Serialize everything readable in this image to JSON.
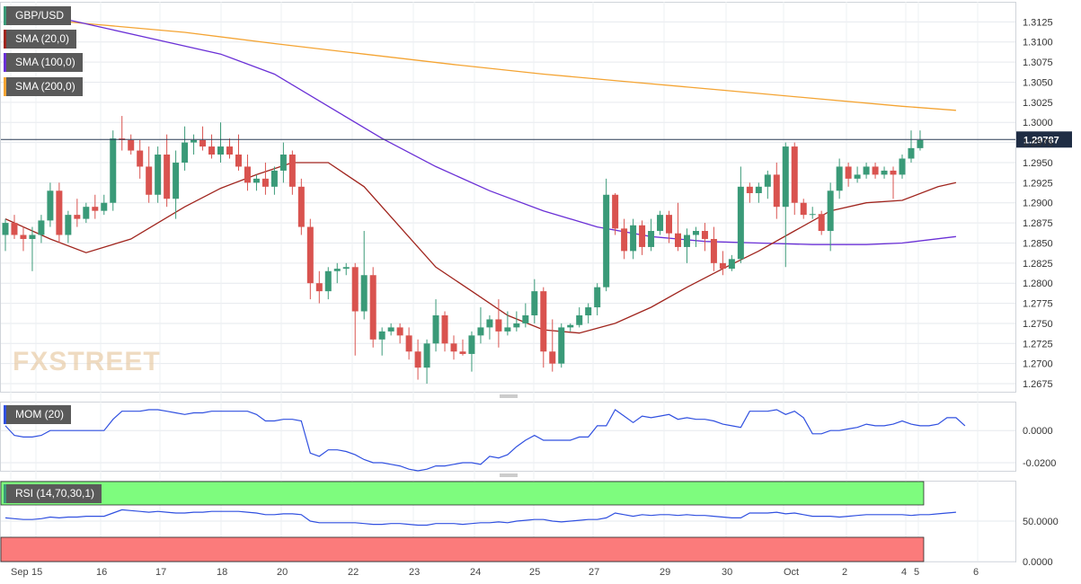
{
  "colors": {
    "up": "#3a9a78",
    "down": "#d9534f",
    "sma20": "#a0251e",
    "sma100": "#6a30d6",
    "sma200": "#f4a433",
    "mom": "#3050e0",
    "rsi": "#3050e0",
    "rsi_over": "#7efc7e",
    "rsi_under": "#fb7b7b"
  },
  "watermark": "FXSTREET",
  "indicators": {
    "pair": "GBP/USD",
    "sma20": "SMA (20,0)",
    "sma100": "SMA (100,0)",
    "sma200": "SMA (200,0)",
    "mom": "MOM (20)",
    "rsi": "RSI (14,70,30,1)"
  },
  "chart_data": [
    {
      "type": "candlestick",
      "title": "GBP/USD",
      "last_price": "1.29787",
      "last_value": 1.29787,
      "ylim": [
        1.2665,
        1.315
      ],
      "y_ticks": [
        "1.3125",
        "1.3100",
        "1.3075",
        "1.3050",
        "1.3025",
        "1.3000",
        "1.2975",
        "1.2950",
        "1.2925",
        "1.2900",
        "1.2875",
        "1.2850",
        "1.2825",
        "1.2800",
        "1.2775",
        "1.2750",
        "1.2725",
        "1.2700",
        "1.2675"
      ],
      "x_labels": [
        "Sep",
        "15",
        "16",
        "17",
        "18",
        "20",
        "22",
        "23",
        "24",
        "25",
        "27",
        "29",
        "30",
        "Oct",
        "2",
        "4",
        "5",
        "6"
      ],
      "candles": [
        {
          "o": 1.286,
          "h": 1.288,
          "l": 1.284,
          "c": 1.2875
        },
        {
          "o": 1.2875,
          "h": 1.2885,
          "l": 1.2855,
          "c": 1.286
        },
        {
          "o": 1.286,
          "h": 1.287,
          "l": 1.284,
          "c": 1.2855
        },
        {
          "o": 1.2855,
          "h": 1.287,
          "l": 1.2815,
          "c": 1.286
        },
        {
          "o": 1.286,
          "h": 1.2885,
          "l": 1.285,
          "c": 1.2878
        },
        {
          "o": 1.2878,
          "h": 1.2925,
          "l": 1.287,
          "c": 1.2915
        },
        {
          "o": 1.2915,
          "h": 1.2925,
          "l": 1.285,
          "c": 1.286
        },
        {
          "o": 1.286,
          "h": 1.289,
          "l": 1.285,
          "c": 1.2885
        },
        {
          "o": 1.2885,
          "h": 1.2905,
          "l": 1.287,
          "c": 1.288
        },
        {
          "o": 1.288,
          "h": 1.29,
          "l": 1.2875,
          "c": 1.2895
        },
        {
          "o": 1.2895,
          "h": 1.291,
          "l": 1.288,
          "c": 1.289
        },
        {
          "o": 1.289,
          "h": 1.291,
          "l": 1.2885,
          "c": 1.29
        },
        {
          "o": 1.29,
          "h": 1.299,
          "l": 1.289,
          "c": 1.298
        },
        {
          "o": 1.298,
          "h": 1.3008,
          "l": 1.2965,
          "c": 1.2978
        },
        {
          "o": 1.2978,
          "h": 1.2985,
          "l": 1.296,
          "c": 1.2965
        },
        {
          "o": 1.2965,
          "h": 1.2978,
          "l": 1.293,
          "c": 1.2945
        },
        {
          "o": 1.2945,
          "h": 1.297,
          "l": 1.29,
          "c": 1.291
        },
        {
          "o": 1.291,
          "h": 1.297,
          "l": 1.29,
          "c": 1.296
        },
        {
          "o": 1.296,
          "h": 1.2985,
          "l": 1.2895,
          "c": 1.2905
        },
        {
          "o": 1.2905,
          "h": 1.2965,
          "l": 1.288,
          "c": 1.295
        },
        {
          "o": 1.295,
          "h": 1.2995,
          "l": 1.294,
          "c": 1.2975
        },
        {
          "o": 1.2975,
          "h": 1.2985,
          "l": 1.296,
          "c": 1.2978
        },
        {
          "o": 1.2978,
          "h": 1.2995,
          "l": 1.2965,
          "c": 1.297
        },
        {
          "o": 1.297,
          "h": 1.2985,
          "l": 1.2955,
          "c": 1.296
        },
        {
          "o": 1.296,
          "h": 1.3,
          "l": 1.295,
          "c": 1.297
        },
        {
          "o": 1.297,
          "h": 1.298,
          "l": 1.2955,
          "c": 1.296
        },
        {
          "o": 1.296,
          "h": 1.2985,
          "l": 1.294,
          "c": 1.2945
        },
        {
          "o": 1.2945,
          "h": 1.296,
          "l": 1.2915,
          "c": 1.2925
        },
        {
          "o": 1.2925,
          "h": 1.2935,
          "l": 1.2915,
          "c": 1.293
        },
        {
          "o": 1.293,
          "h": 1.295,
          "l": 1.291,
          "c": 1.292
        },
        {
          "o": 1.292,
          "h": 1.2945,
          "l": 1.291,
          "c": 1.294
        },
        {
          "o": 1.294,
          "h": 1.2975,
          "l": 1.2925,
          "c": 1.296
        },
        {
          "o": 1.296,
          "h": 1.2965,
          "l": 1.291,
          "c": 1.292
        },
        {
          "o": 1.292,
          "h": 1.293,
          "l": 1.286,
          "c": 1.287
        },
        {
          "o": 1.287,
          "h": 1.288,
          "l": 1.278,
          "c": 1.28
        },
        {
          "o": 1.28,
          "h": 1.2815,
          "l": 1.2775,
          "c": 1.279
        },
        {
          "o": 1.279,
          "h": 1.282,
          "l": 1.278,
          "c": 1.2815
        },
        {
          "o": 1.2815,
          "h": 1.2825,
          "l": 1.28,
          "c": 1.2818
        },
        {
          "o": 1.2818,
          "h": 1.2825,
          "l": 1.281,
          "c": 1.282
        },
        {
          "o": 1.282,
          "h": 1.2825,
          "l": 1.271,
          "c": 1.2765
        },
        {
          "o": 1.2765,
          "h": 1.2865,
          "l": 1.2755,
          "c": 1.281
        },
        {
          "o": 1.281,
          "h": 1.282,
          "l": 1.272,
          "c": 1.273
        },
        {
          "o": 1.273,
          "h": 1.2745,
          "l": 1.271,
          "c": 1.274
        },
        {
          "o": 1.274,
          "h": 1.275,
          "l": 1.2735,
          "c": 1.2745
        },
        {
          "o": 1.2745,
          "h": 1.275,
          "l": 1.2725,
          "c": 1.2735
        },
        {
          "o": 1.2735,
          "h": 1.2745,
          "l": 1.2705,
          "c": 1.2715
        },
        {
          "o": 1.2715,
          "h": 1.273,
          "l": 1.268,
          "c": 1.2695
        },
        {
          "o": 1.2695,
          "h": 1.273,
          "l": 1.2675,
          "c": 1.2725
        },
        {
          "o": 1.2725,
          "h": 1.278,
          "l": 1.2715,
          "c": 1.276
        },
        {
          "o": 1.276,
          "h": 1.2765,
          "l": 1.2715,
          "c": 1.2725
        },
        {
          "o": 1.2725,
          "h": 1.2735,
          "l": 1.2705,
          "c": 1.2715
        },
        {
          "o": 1.2715,
          "h": 1.273,
          "l": 1.271,
          "c": 1.2712
        },
        {
          "o": 1.2712,
          "h": 1.274,
          "l": 1.269,
          "c": 1.2735
        },
        {
          "o": 1.2735,
          "h": 1.277,
          "l": 1.2725,
          "c": 1.2745
        },
        {
          "o": 1.2745,
          "h": 1.276,
          "l": 1.273,
          "c": 1.2755
        },
        {
          "o": 1.2755,
          "h": 1.278,
          "l": 1.272,
          "c": 1.274
        },
        {
          "o": 1.274,
          "h": 1.2765,
          "l": 1.2735,
          "c": 1.2745
        },
        {
          "o": 1.2745,
          "h": 1.2765,
          "l": 1.274,
          "c": 1.275
        },
        {
          "o": 1.275,
          "h": 1.2775,
          "l": 1.2745,
          "c": 1.276
        },
        {
          "o": 1.276,
          "h": 1.2805,
          "l": 1.275,
          "c": 1.279
        },
        {
          "o": 1.279,
          "h": 1.2795,
          "l": 1.2695,
          "c": 1.2715
        },
        {
          "o": 1.2715,
          "h": 1.2755,
          "l": 1.269,
          "c": 1.27
        },
        {
          "o": 1.27,
          "h": 1.275,
          "l": 1.2695,
          "c": 1.2745
        },
        {
          "o": 1.2745,
          "h": 1.275,
          "l": 1.274,
          "c": 1.2748
        },
        {
          "o": 1.2748,
          "h": 1.277,
          "l": 1.2745,
          "c": 1.276
        },
        {
          "o": 1.276,
          "h": 1.2775,
          "l": 1.275,
          "c": 1.277
        },
        {
          "o": 1.277,
          "h": 1.28,
          "l": 1.276,
          "c": 1.2795
        },
        {
          "o": 1.2795,
          "h": 1.293,
          "l": 1.279,
          "c": 1.291
        },
        {
          "o": 1.291,
          "h": 1.2912,
          "l": 1.286,
          "c": 1.2868
        },
        {
          "o": 1.2868,
          "h": 1.288,
          "l": 1.283,
          "c": 1.284
        },
        {
          "o": 1.284,
          "h": 1.288,
          "l": 1.283,
          "c": 1.2872
        },
        {
          "o": 1.2872,
          "h": 1.2878,
          "l": 1.2835,
          "c": 1.2845
        },
        {
          "o": 1.2845,
          "h": 1.288,
          "l": 1.284,
          "c": 1.2865
        },
        {
          "o": 1.2865,
          "h": 1.289,
          "l": 1.286,
          "c": 1.2885
        },
        {
          "o": 1.2885,
          "h": 1.289,
          "l": 1.285,
          "c": 1.2862
        },
        {
          "o": 1.2862,
          "h": 1.29,
          "l": 1.284,
          "c": 1.2845
        },
        {
          "o": 1.2845,
          "h": 1.2868,
          "l": 1.2825,
          "c": 1.286
        },
        {
          "o": 1.286,
          "h": 1.287,
          "l": 1.2845,
          "c": 1.2865
        },
        {
          "o": 1.2865,
          "h": 1.2875,
          "l": 1.284,
          "c": 1.2855
        },
        {
          "o": 1.2855,
          "h": 1.287,
          "l": 1.2815,
          "c": 1.2825
        },
        {
          "o": 1.2825,
          "h": 1.284,
          "l": 1.281,
          "c": 1.2818
        },
        {
          "o": 1.2818,
          "h": 1.2835,
          "l": 1.2815,
          "c": 1.283
        },
        {
          "o": 1.283,
          "h": 1.2945,
          "l": 1.2825,
          "c": 1.292
        },
        {
          "o": 1.292,
          "h": 1.2925,
          "l": 1.29,
          "c": 1.2912
        },
        {
          "o": 1.2912,
          "h": 1.2925,
          "l": 1.29,
          "c": 1.292
        },
        {
          "o": 1.292,
          "h": 1.294,
          "l": 1.2905,
          "c": 1.2935
        },
        {
          "o": 1.2935,
          "h": 1.295,
          "l": 1.288,
          "c": 1.2895
        },
        {
          "o": 1.2895,
          "h": 1.2975,
          "l": 1.282,
          "c": 1.297
        },
        {
          "o": 1.297,
          "h": 1.2975,
          "l": 1.2885,
          "c": 1.29
        },
        {
          "o": 1.29,
          "h": 1.2905,
          "l": 1.288,
          "c": 1.2885
        },
        {
          "o": 1.2885,
          "h": 1.2895,
          "l": 1.288,
          "c": 1.2886
        },
        {
          "o": 1.2886,
          "h": 1.289,
          "l": 1.286,
          "c": 1.2865
        },
        {
          "o": 1.2865,
          "h": 1.2925,
          "l": 1.284,
          "c": 1.2915
        },
        {
          "o": 1.2915,
          "h": 1.2955,
          "l": 1.2905,
          "c": 1.2945
        },
        {
          "o": 1.2945,
          "h": 1.295,
          "l": 1.292,
          "c": 1.293
        },
        {
          "o": 1.293,
          "h": 1.2945,
          "l": 1.2925,
          "c": 1.2935
        },
        {
          "o": 1.2935,
          "h": 1.295,
          "l": 1.293,
          "c": 1.2945
        },
        {
          "o": 1.2945,
          "h": 1.295,
          "l": 1.293,
          "c": 1.2935
        },
        {
          "o": 1.2935,
          "h": 1.2945,
          "l": 1.293,
          "c": 1.294
        },
        {
          "o": 1.294,
          "h": 1.2945,
          "l": 1.2905,
          "c": 1.2935
        },
        {
          "o": 1.2935,
          "h": 1.296,
          "l": 1.293,
          "c": 1.2955
        },
        {
          "o": 1.2955,
          "h": 1.299,
          "l": 1.295,
          "c": 1.2968
        },
        {
          "o": 1.2968,
          "h": 1.299,
          "l": 1.2965,
          "c": 1.2978
        }
      ],
      "sma20": [
        [
          0,
          1.288
        ],
        [
          5,
          1.2855
        ],
        [
          9,
          1.2838
        ],
        [
          14,
          1.2855
        ],
        [
          20,
          1.2895
        ],
        [
          24,
          1.2918
        ],
        [
          28,
          1.2935
        ],
        [
          32,
          1.295
        ],
        [
          36,
          1.295
        ],
        [
          40,
          1.292
        ],
        [
          44,
          1.287
        ],
        [
          48,
          1.282
        ],
        [
          52,
          1.279
        ],
        [
          56,
          1.276
        ],
        [
          60,
          1.2742
        ],
        [
          64,
          1.2738
        ],
        [
          68,
          1.275
        ],
        [
          72,
          1.277
        ],
        [
          76,
          1.2795
        ],
        [
          80,
          1.2818
        ],
        [
          84,
          1.284
        ],
        [
          88,
          1.2865
        ],
        [
          92,
          1.289
        ],
        [
          96,
          1.29
        ],
        [
          100,
          1.2903
        ],
        [
          104,
          1.292
        ],
        [
          106,
          1.2925
        ]
      ],
      "sma100": [
        [
          0,
          1.314
        ],
        [
          6,
          1.313
        ],
        [
          12,
          1.3115
        ],
        [
          18,
          1.31
        ],
        [
          24,
          1.3085
        ],
        [
          30,
          1.306
        ],
        [
          36,
          1.302
        ],
        [
          42,
          1.298
        ],
        [
          48,
          1.2945
        ],
        [
          54,
          1.2915
        ],
        [
          60,
          1.289
        ],
        [
          66,
          1.287
        ],
        [
          72,
          1.2858
        ],
        [
          78,
          1.2852
        ],
        [
          84,
          1.285
        ],
        [
          90,
          1.2848
        ],
        [
          96,
          1.2848
        ],
        [
          100,
          1.285
        ],
        [
          106,
          1.2858
        ]
      ],
      "sma200": [
        [
          0,
          1.3132
        ],
        [
          10,
          1.3122
        ],
        [
          20,
          1.3112
        ],
        [
          30,
          1.3098
        ],
        [
          40,
          1.3085
        ],
        [
          50,
          1.3072
        ],
        [
          60,
          1.306
        ],
        [
          70,
          1.305
        ],
        [
          80,
          1.304
        ],
        [
          90,
          1.303
        ],
        [
          100,
          1.302
        ],
        [
          106,
          1.3015
        ]
      ]
    },
    {
      "type": "line",
      "title": "MOM (20)",
      "y_ticks": [
        "0.0000",
        "-0.0200"
      ],
      "ylim": [
        -0.025,
        0.018
      ],
      "values": [
        0.003,
        -0.003,
        -0.004,
        -0.004,
        -0.003,
        0.0,
        0.0,
        0.0,
        0.0,
        0.0,
        0.0,
        0.0,
        0.007,
        0.012,
        0.012,
        0.012,
        0.013,
        0.013,
        0.012,
        0.011,
        0.01,
        0.011,
        0.011,
        0.012,
        0.012,
        0.012,
        0.012,
        0.012,
        0.01,
        0.006,
        0.006,
        0.007,
        0.007,
        0.006,
        -0.014,
        -0.016,
        -0.012,
        -0.012,
        -0.013,
        -0.015,
        -0.018,
        -0.02,
        -0.02,
        -0.021,
        -0.022,
        -0.024,
        -0.025,
        -0.024,
        -0.022,
        -0.022,
        -0.021,
        -0.02,
        -0.02,
        -0.021,
        -0.016,
        -0.017,
        -0.015,
        -0.01,
        -0.006,
        -0.003,
        -0.006,
        -0.006,
        -0.006,
        -0.006,
        -0.004,
        -0.004,
        0.003,
        0.003,
        0.013,
        0.009,
        0.005,
        0.009,
        0.008,
        0.009,
        0.01,
        0.007,
        0.008,
        0.007,
        0.007,
        0.006,
        0.004,
        0.003,
        0.002,
        0.012,
        0.012,
        0.012,
        0.013,
        0.01,
        0.012,
        0.008,
        -0.002,
        -0.002,
        0.0,
        0.0,
        0.001,
        0.002,
        0.004,
        0.003,
        0.003,
        0.004,
        0.006,
        0.004,
        0.003,
        0.003,
        0.004,
        0.008,
        0.008,
        0.003
      ]
    },
    {
      "type": "line",
      "title": "RSI (14,70,30,1)",
      "y_ticks": [
        "50.0000",
        "0.0000"
      ],
      "ylim": [
        0,
        100
      ],
      "overbought": 70,
      "oversold": 30,
      "values": [
        54,
        53,
        52,
        52,
        53,
        55,
        54,
        55,
        55,
        56,
        56,
        56,
        60,
        64,
        63,
        62,
        61,
        62,
        61,
        60,
        60,
        61,
        61,
        62,
        62,
        62,
        62,
        61,
        60,
        58,
        58,
        59,
        59,
        58,
        50,
        48,
        48,
        48,
        48,
        48,
        47,
        46,
        46,
        47,
        47,
        46,
        45,
        45,
        47,
        47,
        47,
        46,
        47,
        48,
        48,
        49,
        48,
        50,
        51,
        52,
        52,
        50,
        49,
        50,
        51,
        52,
        52,
        54,
        60,
        58,
        56,
        58,
        57,
        58,
        58,
        57,
        58,
        57,
        57,
        56,
        55,
        54,
        54,
        60,
        60,
        60,
        61,
        59,
        60,
        58,
        56,
        56,
        56,
        55,
        56,
        57,
        58,
        58,
        58,
        58,
        58,
        57,
        58,
        58,
        59,
        60,
        61
      ]
    }
  ]
}
